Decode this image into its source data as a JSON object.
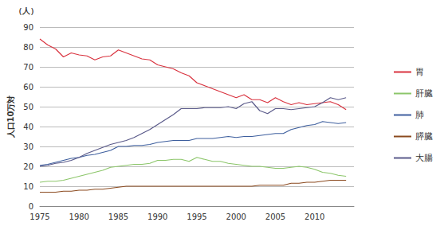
{
  "chart_data": {
    "type": "line",
    "ylabel": "人口10万対",
    "annotations": [
      "（人）"
    ],
    "x": [
      1975,
      1976,
      1977,
      1978,
      1979,
      1980,
      1981,
      1982,
      1983,
      1984,
      1985,
      1986,
      1987,
      1988,
      1989,
      1990,
      1991,
      1992,
      1993,
      1994,
      1995,
      1996,
      1997,
      1998,
      1999,
      2000,
      2001,
      2002,
      2003,
      2004,
      2005,
      2006,
      2007,
      2008,
      2009,
      2010,
      2011,
      2012,
      2013,
      2014
    ],
    "series": [
      {
        "name": "胃",
        "color": "#d9333f",
        "values": [
          84,
          81,
          79,
          75,
          77,
          76,
          75.5,
          73.5,
          75,
          75.5,
          78.5,
          77,
          75.5,
          74,
          73.5,
          71,
          70,
          69,
          67,
          65.5,
          62,
          60.5,
          59,
          57.5,
          56,
          54.5,
          56,
          53.5,
          53.5,
          52,
          54.5,
          52.5,
          51,
          52,
          51,
          51.5,
          52,
          52.5,
          51,
          48.5
        ]
      },
      {
        "name": "肝臓",
        "color": "#8cc66a",
        "values": [
          12,
          12.5,
          12.5,
          13,
          14,
          15,
          16,
          17,
          18,
          19.5,
          20,
          20.5,
          21,
          21,
          21.5,
          23,
          23,
          23.5,
          23.5,
          22.5,
          24.5,
          23.5,
          22.5,
          22.5,
          21.5,
          21,
          20.5,
          20,
          20,
          19.5,
          19,
          19,
          19.5,
          20,
          19.5,
          18.5,
          17,
          16.5,
          15.5,
          15
        ]
      },
      {
        "name": "肺",
        "color": "#3e5f9e",
        "values": [
          20.5,
          21,
          22,
          23,
          24,
          24.5,
          25.5,
          26,
          27,
          28,
          30,
          30,
          30.5,
          30.5,
          31,
          32,
          32.5,
          33,
          33,
          33,
          34,
          34,
          34,
          34.5,
          35,
          34.5,
          35,
          35,
          35.5,
          36,
          36.5,
          36.5,
          38.5,
          39.5,
          40.5,
          41,
          42.5,
          42,
          41.5,
          42
        ]
      },
      {
        "name": "膵臓",
        "color": "#8b4a1f",
        "values": [
          7,
          7,
          7,
          7.5,
          7.5,
          8,
          8,
          8.5,
          8.5,
          9,
          9.5,
          10,
          10,
          10,
          10,
          10,
          10,
          10,
          10,
          10,
          10,
          10,
          10,
          10,
          10,
          10,
          10,
          10,
          10.5,
          10.5,
          10.5,
          10.5,
          11.5,
          11.5,
          12,
          12,
          12.5,
          13,
          13,
          13
        ]
      },
      {
        "name": "大腸",
        "color": "#5a5a8a",
        "values": [
          20,
          20.5,
          21.5,
          22,
          23,
          24.5,
          26.5,
          28,
          29.5,
          31,
          32,
          33,
          34.5,
          36.5,
          38.5,
          41,
          43.5,
          46,
          49,
          49,
          49,
          49.5,
          49.5,
          49.5,
          50,
          49,
          51.5,
          52.5,
          48,
          46.5,
          49,
          49,
          48.5,
          49,
          49.5,
          50,
          52,
          54.5,
          53.5,
          54.5
        ]
      }
    ],
    "xlim": [
      1975,
      2015
    ],
    "xticks": [
      1975,
      1980,
      1985,
      1990,
      1995,
      2000,
      2005,
      2010
    ],
    "ylim": [
      0,
      90
    ],
    "yticks": [
      0,
      10,
      20,
      30,
      40,
      50,
      60,
      70,
      80,
      90
    ],
    "grid": true,
    "legend": "right"
  }
}
